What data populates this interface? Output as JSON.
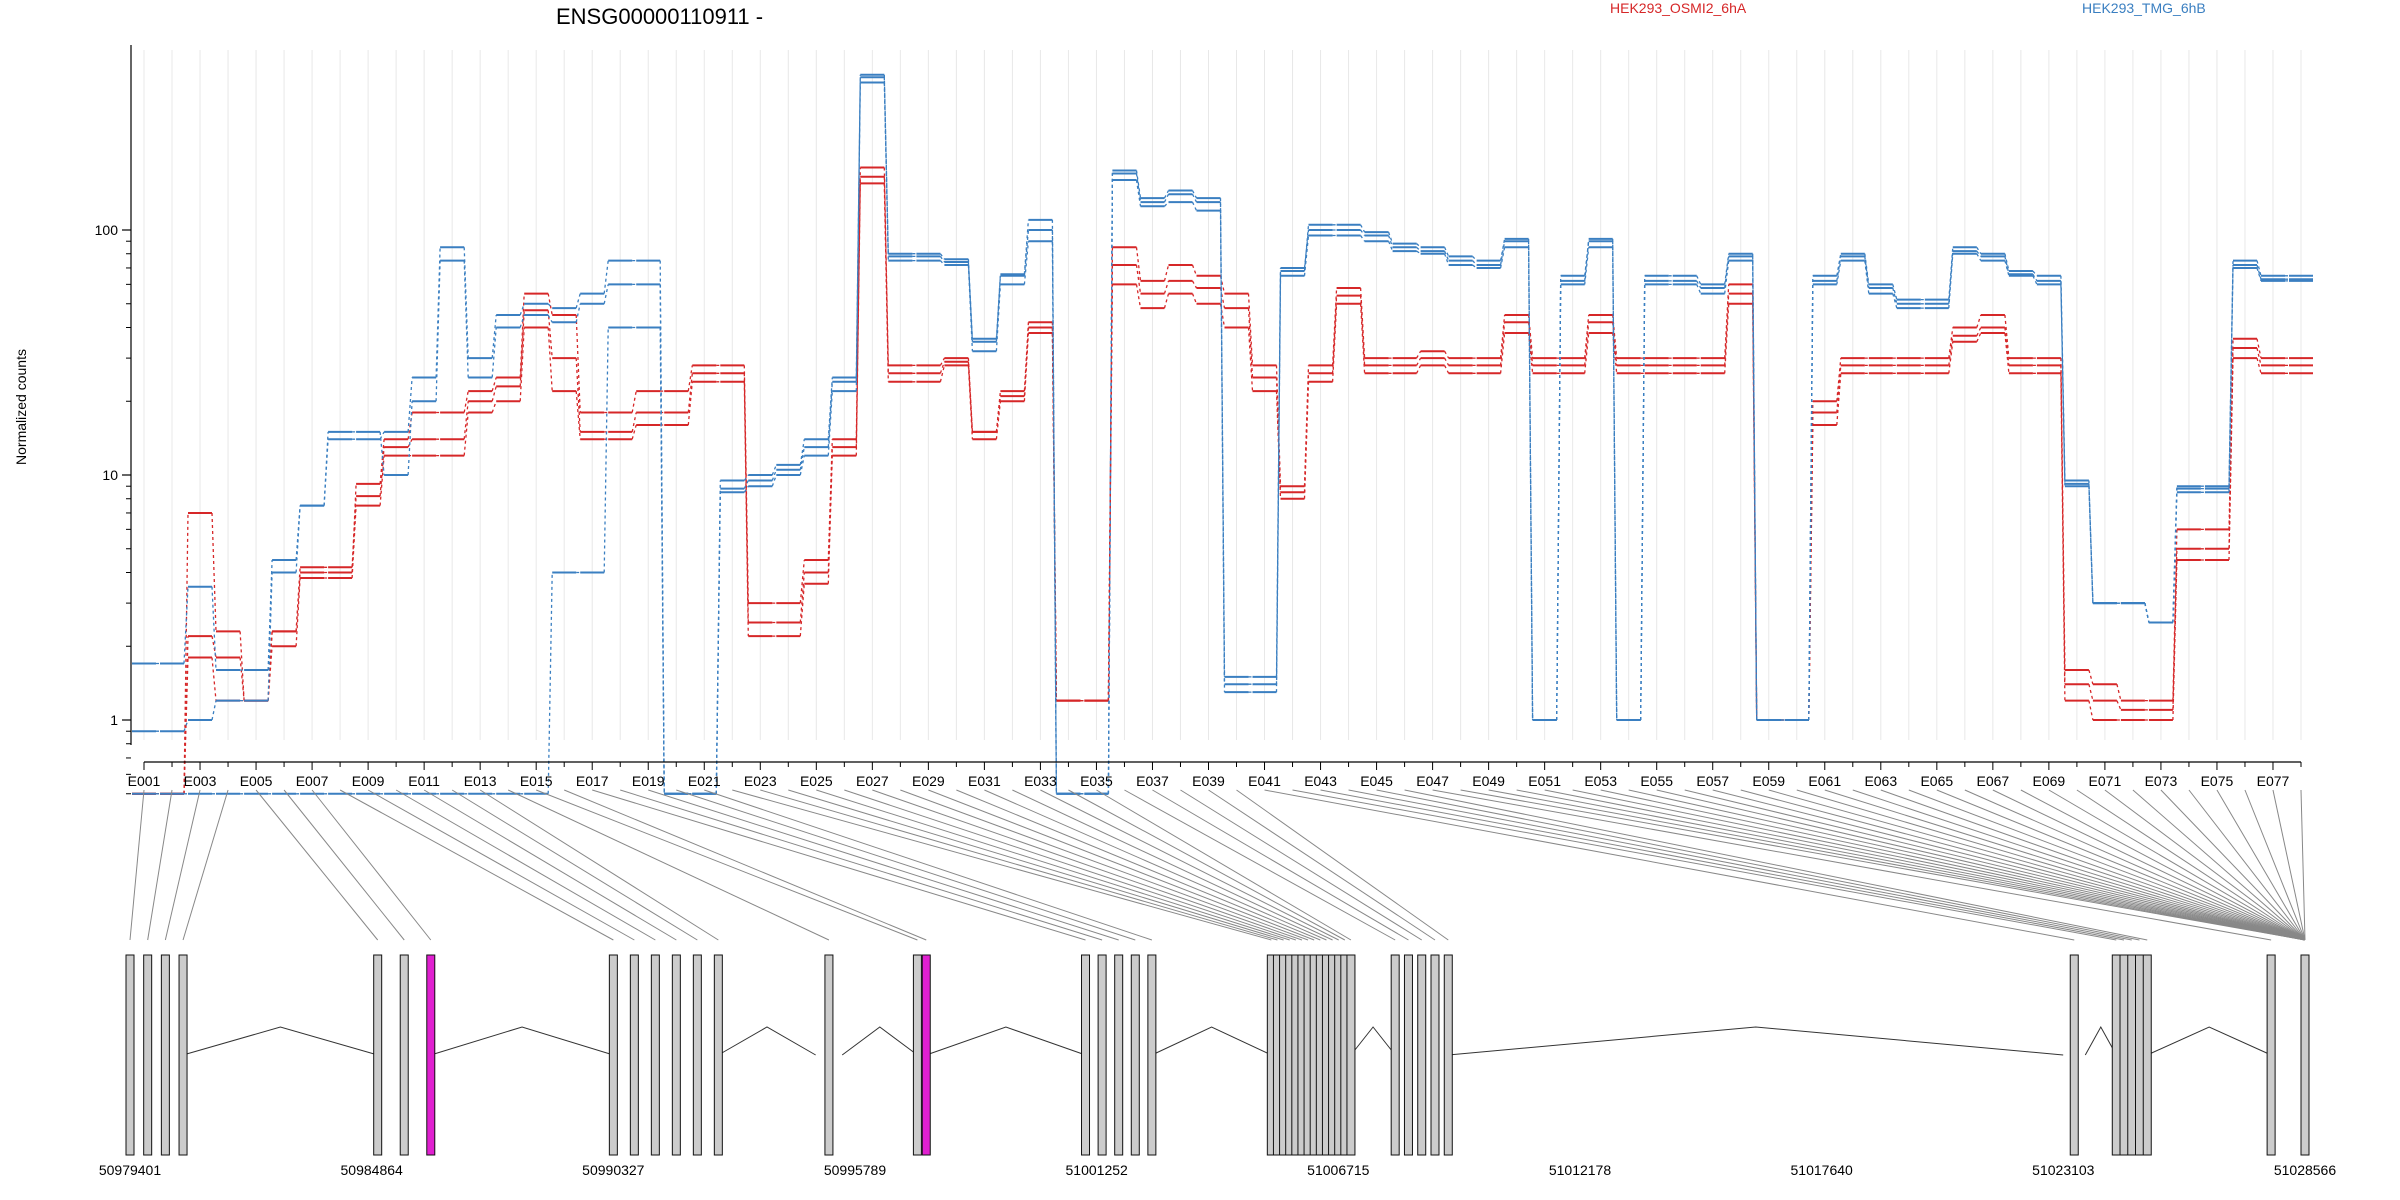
{
  "chart_data": {
    "type": "line",
    "title": "ENSG00000110911 -",
    "ylabel": "Normalized counts",
    "yscale": "log",
    "ylim": [
      0.45,
      600
    ],
    "y_ticks": [
      {
        "value": 1,
        "label": "1"
      },
      {
        "value": 10,
        "label": "10"
      },
      {
        "value": 100,
        "label": "100"
      }
    ],
    "grid": true,
    "legend": [
      {
        "name": "HEK293_OSMI2_6hA",
        "color": "#d62728"
      },
      {
        "name": "HEK293_TMG_6hB",
        "color": "#3a7fc1"
      }
    ],
    "exon_labels": [
      "E001",
      "E003",
      "E005",
      "E007",
      "E009",
      "E011",
      "E013",
      "E015",
      "E017",
      "E019",
      "E021",
      "E023",
      "E025",
      "E027",
      "E029",
      "E031",
      "E033",
      "E035",
      "E037",
      "E039",
      "E041",
      "E043",
      "E045",
      "E047",
      "E049",
      "E051",
      "E053",
      "E055",
      "E057",
      "E059",
      "E061",
      "E063",
      "E065",
      "E067",
      "E069",
      "E071",
      "E073",
      "E075",
      "E077"
    ],
    "exon_count": 78,
    "genomic_axis_labels": [
      "50979401",
      "50984864",
      "50990327",
      "50995789",
      "51001252",
      "51006715",
      "51012178",
      "51017640",
      "51023103",
      "51028566"
    ],
    "genomic_range": [
      50979401,
      51028566
    ],
    "series": [
      {
        "name": "HEK293_OSMI2_6hA",
        "group": "HEK293_OSMI2_6hA",
        "values": [
          0.5,
          0.5,
          7,
          2.3,
          1.2,
          2.3,
          4,
          4,
          9.2,
          14,
          18,
          18,
          22,
          25,
          55,
          45,
          18,
          18,
          22,
          22,
          28,
          28,
          3,
          3,
          4.5,
          14,
          180,
          28,
          28,
          30,
          15,
          22,
          42,
          1.2,
          1.2,
          85,
          62,
          72,
          65,
          55,
          28,
          9,
          28,
          58,
          30,
          30,
          32,
          30,
          30,
          45,
          30,
          30,
          45,
          30,
          30,
          30,
          30,
          60,
          1,
          1,
          20,
          30,
          30,
          30,
          30,
          40,
          45,
          30,
          30,
          1.6,
          1.4,
          1.2,
          1.2,
          6,
          6,
          36,
          30,
          30
        ]
      },
      {
        "name": "HEK293_OSMI2_6hA",
        "group": "HEK293_OSMI2_6hA",
        "values": [
          0.5,
          0.5,
          1.8,
          1.2,
          1.2,
          2,
          3.8,
          3.8,
          7.5,
          12,
          12,
          12,
          18,
          20,
          40,
          22,
          14,
          14,
          16,
          16,
          24,
          24,
          2.2,
          2.2,
          3.6,
          12,
          155,
          24,
          24,
          28,
          14,
          20,
          38,
          1.2,
          1.2,
          60,
          48,
          55,
          50,
          40,
          22,
          8,
          24,
          50,
          26,
          26,
          28,
          26,
          26,
          38,
          26,
          26,
          38,
          26,
          26,
          26,
          26,
          50,
          1,
          1,
          16,
          26,
          26,
          26,
          26,
          35,
          38,
          26,
          26,
          1.2,
          1,
          1,
          1,
          4.5,
          4.5,
          30,
          26,
          26
        ]
      },
      {
        "name": "HEK293_OSMI2_6hA",
        "group": "HEK293_OSMI2_6hA",
        "values": [
          0.5,
          0.5,
          2.2,
          1.8,
          1.2,
          2.3,
          4.2,
          4.2,
          8.2,
          13,
          14,
          14,
          20,
          23,
          47,
          30,
          15,
          15,
          18,
          18,
          26,
          26,
          2.5,
          2.5,
          4,
          13,
          165,
          26,
          26,
          29,
          15,
          21,
          40,
          1.2,
          1.2,
          72,
          55,
          62,
          58,
          48,
          25,
          8.5,
          26,
          54,
          28,
          28,
          30,
          28,
          28,
          42,
          28,
          28,
          42,
          28,
          28,
          28,
          28,
          55,
          1,
          1,
          18,
          28,
          28,
          28,
          28,
          37,
          40,
          28,
          28,
          1.4,
          1.2,
          1.1,
          1.1,
          5,
          5,
          33,
          28,
          28
        ]
      },
      {
        "name": "HEK293_TMG_6hB",
        "group": "HEK293_TMG_6hB",
        "values": [
          1.7,
          1.7,
          3.5,
          1.6,
          1.6,
          4.5,
          7.5,
          15,
          15,
          10,
          20,
          75,
          25,
          40,
          45,
          42,
          50,
          60,
          60,
          0.5,
          0.5,
          9.5,
          10,
          11,
          14,
          25,
          400,
          75,
          75,
          72,
          32,
          60,
          90,
          0.5,
          0.5,
          160,
          125,
          130,
          120,
          1.3,
          1.3,
          65,
          95,
          95,
          90,
          82,
          80,
          72,
          70,
          85,
          1,
          60,
          85,
          1,
          60,
          60,
          55,
          75,
          1,
          1,
          60,
          75,
          55,
          48,
          48,
          80,
          75,
          65,
          60,
          9,
          3,
          3,
          2.5,
          8.5,
          8.5,
          70,
          62,
          62
        ]
      },
      {
        "name": "HEK293_TMG_6hB",
        "group": "HEK293_TMG_6hB",
        "values": [
          0.9,
          0.9,
          1,
          1.2,
          1.2,
          4,
          7.5,
          14,
          14,
          15,
          25,
          85,
          30,
          45,
          50,
          48,
          55,
          75,
          75,
          0.5,
          0.5,
          8.5,
          9,
          10,
          12,
          22,
          420,
          78,
          78,
          74,
          35,
          65,
          100,
          0.5,
          0.5,
          170,
          130,
          140,
          130,
          1.5,
          1.5,
          70,
          100,
          100,
          95,
          85,
          82,
          75,
          72,
          90,
          1,
          65,
          90,
          1,
          65,
          65,
          60,
          80,
          1,
          1,
          65,
          80,
          60,
          52,
          52,
          85,
          80,
          68,
          65,
          9.5,
          3,
          3,
          2.5,
          9,
          9,
          75,
          65,
          65
        ]
      },
      {
        "name": "HEK293_TMG_6hB",
        "group": "HEK293_TMG_6hB",
        "values": [
          0.5,
          0.5,
          0.5,
          0.5,
          0.5,
          0.5,
          0.5,
          0.5,
          0.5,
          0.5,
          0.5,
          0.5,
          0.5,
          0.5,
          0.5,
          4,
          4,
          40,
          40,
          0.5,
          0.5,
          8.8,
          9.5,
          10.5,
          13,
          24,
          430,
          80,
          80,
          76,
          36,
          66,
          110,
          0.5,
          0.5,
          175,
          135,
          145,
          135,
          1.4,
          1.4,
          68,
          105,
          105,
          98,
          88,
          85,
          78,
          75,
          92,
          1,
          62,
          92,
          1,
          62,
          62,
          58,
          78,
          1,
          1,
          62,
          78,
          58,
          50,
          50,
          82,
          78,
          66,
          62,
          9.2,
          3,
          3,
          2.5,
          8.8,
          8.8,
          72,
          63,
          63
        ]
      }
    ]
  }
}
